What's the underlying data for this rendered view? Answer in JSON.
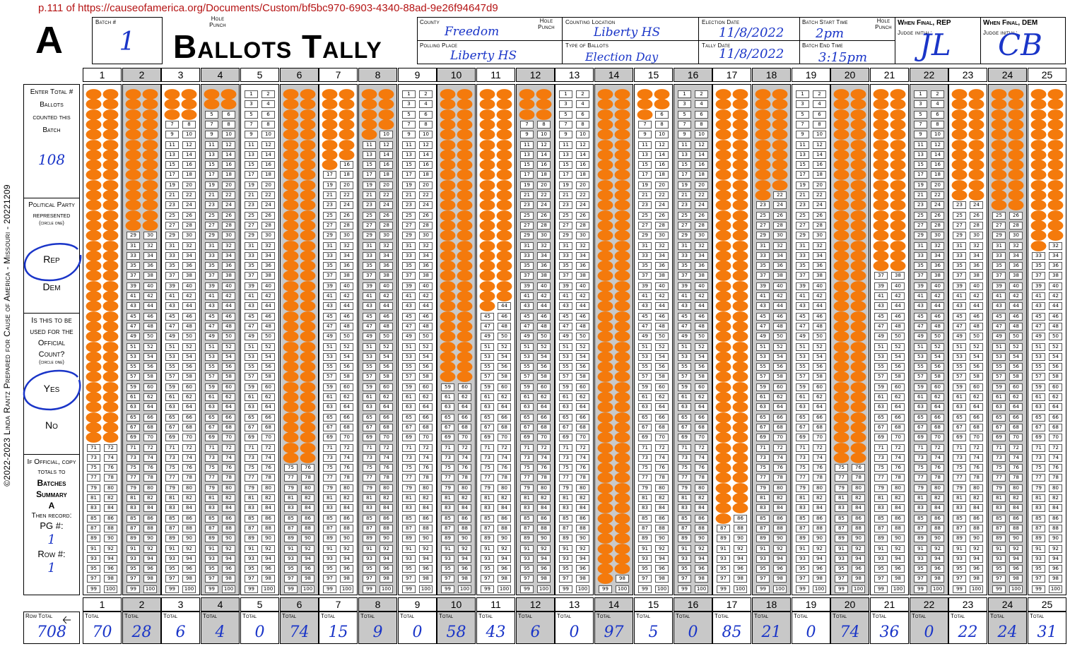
{
  "source_url": "p.111 of https://causeofamerica.org/Documents/Custom/bf5bc970-6903-4340-88ad-9e26f94647d9",
  "section_letter": "A",
  "form_title": "Ballots Tally",
  "hole_punch_label": "Hole Punch",
  "batch": {
    "label": "Batch #",
    "value": "1"
  },
  "county": {
    "label": "County",
    "value": "Freedom"
  },
  "polling_place": {
    "label": "Polling Place",
    "value": "Liberty HS"
  },
  "counting_location": {
    "label": "Counting Location",
    "value": "Liberty HS"
  },
  "type_of_ballots": {
    "label": "Type of Ballots",
    "value": "Election Day"
  },
  "election_date": {
    "label": "Election Date",
    "value": "11/8/2022"
  },
  "tally_date": {
    "label": "Tally Date",
    "value": "11/8/2022"
  },
  "batch_start_time": {
    "label": "Batch Start Time",
    "value": "2pm"
  },
  "batch_end_time": {
    "label": "Batch End Time",
    "value": "3:15pm"
  },
  "final_rep": {
    "title": "When Final, REP",
    "sub": "Judge initial:",
    "value": "JL"
  },
  "final_dem": {
    "title": "When Final, DEM",
    "sub": "Judge initial:",
    "value": "CB"
  },
  "sidebar": {
    "enter_total": "Enter Total # Ballots counted this Batch",
    "total_value": "108",
    "party_label": "Political Party represented",
    "circle_one": "(circle one)",
    "rep": "Rep",
    "dem": "Dem",
    "official_label": "Is this to be used for the Official Count?",
    "circle_one_2": "(circle one)",
    "yes": "Yes",
    "no": "No",
    "copy_label": "If Official, copy totals to",
    "batches_summary": "Batches Summary",
    "summary_letter": "A",
    "then_record": "Then record:",
    "pg_label": "PG #:",
    "pg_value": "1",
    "row_label": "Row #:",
    "row_value": "1"
  },
  "copyright": "©2022-2023 Linda Rantz Prepared for Cause of America - Missouri - 20221209",
  "row_total": {
    "label": "Row Total",
    "value": "708"
  },
  "total_label": "Total",
  "columns": [
    {
      "n": "1",
      "total": "70"
    },
    {
      "n": "2",
      "total": "28"
    },
    {
      "n": "3",
      "total": "6"
    },
    {
      "n": "4",
      "total": "4"
    },
    {
      "n": "5",
      "total": "0"
    },
    {
      "n": "6",
      "total": "74"
    },
    {
      "n": "7",
      "total": "15"
    },
    {
      "n": "8",
      "total": "9"
    },
    {
      "n": "9",
      "total": "0"
    },
    {
      "n": "10",
      "total": "58"
    },
    {
      "n": "11",
      "total": "43"
    },
    {
      "n": "12",
      "total": "6"
    },
    {
      "n": "13",
      "total": "0"
    },
    {
      "n": "14",
      "total": "97"
    },
    {
      "n": "15",
      "total": "5"
    },
    {
      "n": "16",
      "total": "0"
    },
    {
      "n": "17",
      "total": "85"
    },
    {
      "n": "18",
      "total": "21"
    },
    {
      "n": "19",
      "total": "0"
    },
    {
      "n": "20",
      "total": "74"
    },
    {
      "n": "21",
      "total": "36"
    },
    {
      "n": "22",
      "total": "0"
    },
    {
      "n": "23",
      "total": "22"
    },
    {
      "n": "24",
      "total": "24"
    },
    {
      "n": "25",
      "total": "31"
    }
  ],
  "colors": {
    "mark": "#f47a0c",
    "ink": "#1a35c8",
    "url": "#b51414",
    "gray": "#c8c8c8"
  }
}
